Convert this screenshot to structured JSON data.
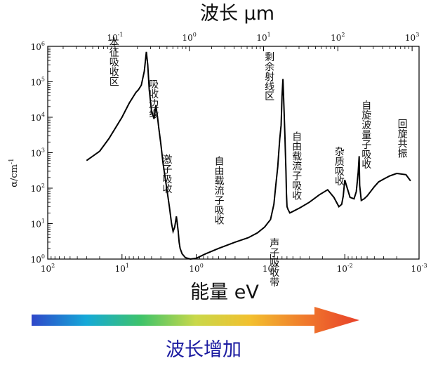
{
  "chart_data": {
    "type": "line",
    "title_top": "波长 μm",
    "xlabel": "能量 eV",
    "ylabel": "α/cm",
    "ylabel_sup": "-1",
    "x_bottom_scale": "log-reversed",
    "x_bottom_range": [
      100,
      0.001
    ],
    "x_top_range": [
      0.0124,
      1240
    ],
    "y_scale": "log",
    "ylim": [
      1,
      1000000
    ],
    "x_bottom_ticks": [
      {
        "value": 100,
        "base": "10",
        "exp": "2"
      },
      {
        "value": 10,
        "base": "10",
        "exp": "1"
      },
      {
        "value": 1,
        "base": "10",
        "exp": "0"
      },
      {
        "value": 0.1,
        "base": "10",
        "exp": "-1"
      },
      {
        "value": 0.01,
        "base": "10",
        "exp": "-2"
      },
      {
        "value": 0.001,
        "base": "10",
        "exp": "-3"
      }
    ],
    "x_top_ticks": [
      {
        "value": 0.1,
        "base": "10",
        "exp": "-1"
      },
      {
        "value": 1,
        "base": "10",
        "exp": "0"
      },
      {
        "value": 10,
        "base": "10",
        "exp": "1"
      },
      {
        "value": 100,
        "base": "10",
        "exp": "2"
      },
      {
        "value": 1000,
        "base": "10",
        "exp": "3"
      }
    ],
    "y_ticks": [
      {
        "value": 1,
        "base": "10",
        "exp": "0"
      },
      {
        "value": 10,
        "base": "10",
        "exp": "1"
      },
      {
        "value": 100,
        "base": "10",
        "exp": "2"
      },
      {
        "value": 1000,
        "base": "10",
        "exp": "3"
      },
      {
        "value": 10000,
        "base": "10",
        "exp": "4"
      },
      {
        "value": 100000,
        "base": "10",
        "exp": "5"
      },
      {
        "value": 1000000,
        "base": "10",
        "exp": "6"
      }
    ],
    "series": [
      {
        "x_eV": [
          30,
          20,
          15,
          10,
          8,
          6.5,
          6.0,
          5.5,
          5.0,
          4.7,
          4.5,
          4.3,
          4.0,
          3.7,
          3.5,
          3.3,
          3.2,
          3.0,
          2.8,
          2.5,
          2.3,
          2.15,
          2.05,
          1.95,
          1.85,
          1.8,
          1.75,
          1.7,
          1.65,
          1.55,
          1.4,
          1.2,
          1.0,
          0.75,
          0.5,
          0.3,
          0.2,
          0.15,
          0.12,
          0.1,
          0.09,
          0.085,
          0.08,
          0.077,
          0.075,
          0.072,
          0.07,
          0.068,
          0.066,
          0.064,
          0.063,
          0.062,
          0.061,
          0.06,
          0.058,
          0.055,
          0.05,
          0.04,
          0.03,
          0.022,
          0.017,
          0.014,
          0.012,
          0.011,
          0.0105,
          0.01,
          0.0085,
          0.0075,
          0.007,
          0.0066,
          0.0064,
          0.0063,
          0.006,
          0.0055,
          0.005,
          0.0045,
          0.004,
          0.0035,
          0.003,
          0.0025,
          0.002,
          0.0015,
          0.0013
        ],
        "y": [
          600,
          1100,
          2500,
          10000,
          25000,
          50000,
          60000,
          80000,
          200000,
          700000,
          300000,
          60000,
          15000,
          9000,
          22000,
          9000,
          5000,
          1800,
          500,
          100,
          30,
          10,
          6,
          8,
          16,
          10,
          6,
          3,
          2,
          1.4,
          1.1,
          1.0,
          1.05,
          1.4,
          2.0,
          3.0,
          4.0,
          5.5,
          8,
          13,
          35,
          120,
          400,
          1200,
          2500,
          6000,
          40000,
          120000,
          20000,
          3000,
          1000,
          300,
          70,
          30,
          25,
          20,
          22,
          28,
          40,
          65,
          90,
          55,
          30,
          35,
          60,
          170,
          55,
          50,
          80,
          280,
          800,
          120,
          45,
          50,
          60,
          80,
          110,
          150,
          180,
          220,
          260,
          240,
          160
        ]
      }
    ],
    "annotations": [
      {
        "text": "本征吸收区",
        "x_eV": 13,
        "y_top": 1800000
      },
      {
        "text": "吸收边缘",
        "x_eV": 3.8,
        "y_top": 120000
      },
      {
        "text": "激子吸收",
        "x_eV": 2.5,
        "y_top": 900
      },
      {
        "text": "自由载流子吸收",
        "x_eV": 0.5,
        "y_top": 800
      },
      {
        "text": "剩余射线区",
        "x_eV": 0.105,
        "y_top": 700000
      },
      {
        "text": "声子吸收带",
        "x_eV": 0.09,
        "y_top": 4
      },
      {
        "text": "自由载流子吸收",
        "x_eV": 0.045,
        "y_top": 4000
      },
      {
        "text": "杂质吸收",
        "x_eV": 0.012,
        "y_top": 1500
      },
      {
        "text": "自旋波量子吸收",
        "x_eV": 0.0052,
        "y_top": 30000
      },
      {
        "text": "回旋共振",
        "x_eV": 0.0017,
        "y_top": 9000
      }
    ]
  },
  "arrow": {
    "label": "波长增加",
    "gradient": [
      "#2f47c9",
      "#15a9d8",
      "#3ec36a",
      "#c9d84a",
      "#f2c02f",
      "#f07a2c",
      "#e8412a"
    ]
  }
}
